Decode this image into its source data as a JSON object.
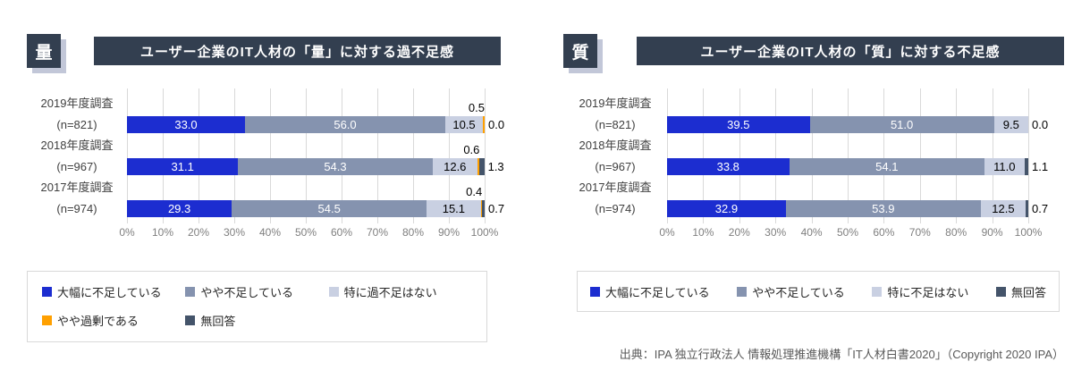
{
  "source_note": "出典：IPA 独立行政法人 情報処理推進機構「IT人材白書2020」（Copyright 2020 IPA）",
  "colors": {
    "navy": "#333F50",
    "blue": "#1C2DD0",
    "gray": "#8593AF",
    "light_gray": "#C9D0E2",
    "orange": "#FFA000",
    "dark_slate": "#44546A",
    "grid": "#D9D9D9",
    "axis_text": "#7F7F7F"
  },
  "chart_data": [
    {
      "type": "bar",
      "orientation": "horizontal",
      "stacked": true,
      "badge": "量",
      "title": "ユーザー企業のIT人材の「量」に対する過不足感",
      "categories": [
        {
          "line1": "2019年度調査",
          "line2": "(n=821)"
        },
        {
          "line1": "2018年度調査",
          "line2": "(n=967)"
        },
        {
          "line1": "2017年度調査",
          "line2": "(n=974)"
        }
      ],
      "x_axis": {
        "min": 0,
        "max": 100,
        "ticks": [
          "0%",
          "10%",
          "20%",
          "30%",
          "40%",
          "50%",
          "60%",
          "70%",
          "80%",
          "90%",
          "100%"
        ]
      },
      "series": [
        {
          "name": "大幅に不足している",
          "color": "#1C2DD0",
          "label_style": "inside-light",
          "values": [
            33.0,
            31.1,
            29.3
          ]
        },
        {
          "name": "やや不足している",
          "color": "#8593AF",
          "label_style": "inside-light",
          "values": [
            56.0,
            54.3,
            54.5
          ]
        },
        {
          "name": "特に過不足はない",
          "color": "#C9D0E2",
          "label_style": "inside-dark",
          "values": [
            10.5,
            12.6,
            15.1
          ]
        },
        {
          "name": "やや過剰である",
          "color": "#FFA000",
          "label_style": "above",
          "values": [
            0.5,
            0.6,
            0.4
          ]
        },
        {
          "name": "無回答",
          "color": "#44546A",
          "label_style": "outside",
          "values": [
            0.0,
            1.3,
            0.7
          ]
        }
      ],
      "legend_layout": "grid-3col"
    },
    {
      "type": "bar",
      "orientation": "horizontal",
      "stacked": true,
      "badge": "質",
      "title": "ユーザー企業のIT人材の「質」に対する不足感",
      "categories": [
        {
          "line1": "2019年度調査",
          "line2": "(n=821)"
        },
        {
          "line1": "2018年度調査",
          "line2": "(n=967)"
        },
        {
          "line1": "2017年度調査",
          "line2": "(n=974)"
        }
      ],
      "x_axis": {
        "min": 0,
        "max": 100,
        "ticks": [
          "0%",
          "10%",
          "20%",
          "30%",
          "40%",
          "50%",
          "60%",
          "70%",
          "80%",
          "90%",
          "100%"
        ]
      },
      "series": [
        {
          "name": "大幅に不足している",
          "color": "#1C2DD0",
          "label_style": "inside-light",
          "values": [
            39.5,
            33.8,
            32.9
          ]
        },
        {
          "name": "やや不足している",
          "color": "#8593AF",
          "label_style": "inside-light",
          "values": [
            51.0,
            54.1,
            53.9
          ]
        },
        {
          "name": "特に不足はない",
          "color": "#C9D0E2",
          "label_style": "inside-dark",
          "values": [
            9.5,
            11.0,
            12.5
          ]
        },
        {
          "name": "無回答",
          "color": "#44546A",
          "label_style": "outside",
          "values": [
            0.0,
            1.1,
            0.7
          ]
        }
      ],
      "legend_layout": "row"
    }
  ]
}
